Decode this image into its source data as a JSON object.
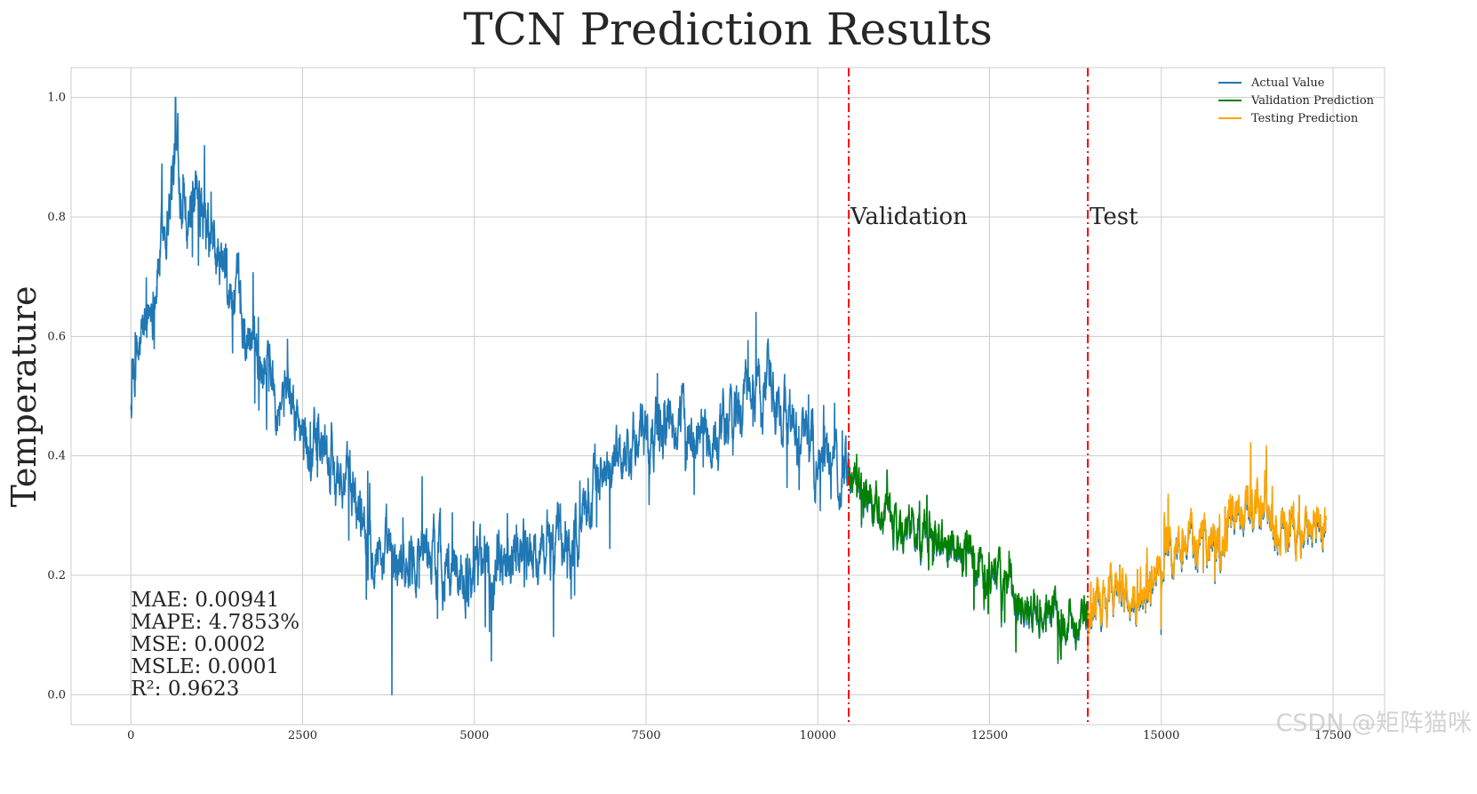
{
  "chart_data": {
    "type": "line",
    "title": "TCN Prediction Results",
    "xlabel": "",
    "ylabel": "Temperature",
    "xlim": [
      -870,
      18250
    ],
    "ylim": [
      -0.05,
      1.05
    ],
    "x_ticks": [
      0,
      2500,
      5000,
      7500,
      10000,
      12500,
      15000,
      17500
    ],
    "x_tick_labels": [
      "0",
      "2500",
      "5000",
      "7500",
      "10000",
      "12500",
      "15000",
      "17500"
    ],
    "y_ticks": [
      0.0,
      0.2,
      0.4,
      0.6,
      0.8,
      1.0
    ],
    "y_tick_labels": [
      "0.0",
      "0.2",
      "0.4",
      "0.6",
      "0.8",
      "1.0"
    ],
    "grid": true,
    "legend_position": "top-right",
    "split_lines": [
      {
        "x": 10450,
        "label": "Validation",
        "color": "#ff0000"
      },
      {
        "x": 13930,
        "label": "Test",
        "color": "#ff0000"
      }
    ],
    "metrics": [
      "MAE: 0.00941",
      "MAPE: 4.7853%",
      "MSE: 0.0002",
      "MSLE: 0.0001",
      "R²: 0.9623"
    ],
    "series": [
      {
        "name": "Actual Value",
        "color": "#1f77b4",
        "x": [
          0,
          300,
          650,
          900,
          1200,
          1600,
          2000,
          2500,
          3000,
          3400,
          3800,
          4200,
          4600,
          5000,
          5500,
          6000,
          6500,
          7000,
          7500,
          8000,
          8500,
          9000,
          9300,
          9600,
          10000,
          10450,
          10800,
          11200,
          11600,
          12000,
          12400,
          12800,
          13200,
          13600,
          13930,
          14300,
          14700,
          15000,
          15400,
          15800,
          16200,
          16600,
          17000,
          17400
        ],
        "values": [
          0.5,
          0.66,
          0.9,
          0.8,
          0.74,
          0.62,
          0.56,
          0.44,
          0.38,
          0.3,
          0.21,
          0.25,
          0.22,
          0.21,
          0.25,
          0.24,
          0.27,
          0.4,
          0.43,
          0.45,
          0.42,
          0.5,
          0.52,
          0.46,
          0.38,
          0.37,
          0.32,
          0.28,
          0.27,
          0.24,
          0.2,
          0.17,
          0.14,
          0.12,
          0.14,
          0.17,
          0.14,
          0.22,
          0.25,
          0.24,
          0.3,
          0.3,
          0.28,
          0.27
        ],
        "peaks": [
          [
            650,
            1.0
          ],
          [
            3800,
            0.0
          ],
          [
            9100,
            0.64
          ],
          [
            16300,
            0.42
          ]
        ]
      },
      {
        "name": "Validation Prediction",
        "color": "#008000",
        "x": [
          10450,
          10800,
          11200,
          11600,
          12000,
          12400,
          12800,
          13200,
          13600,
          13930
        ],
        "values": [
          0.38,
          0.33,
          0.28,
          0.27,
          0.24,
          0.2,
          0.17,
          0.14,
          0.12,
          0.15
        ]
      },
      {
        "name": "Testing Prediction",
        "color": "#ffa500",
        "x": [
          13930,
          14300,
          14700,
          15000,
          15400,
          15800,
          16200,
          16600,
          17000,
          17400
        ],
        "values": [
          0.15,
          0.17,
          0.14,
          0.22,
          0.25,
          0.24,
          0.3,
          0.3,
          0.28,
          0.28
        ]
      }
    ]
  },
  "watermark": "CSDN @矩阵猫咪"
}
